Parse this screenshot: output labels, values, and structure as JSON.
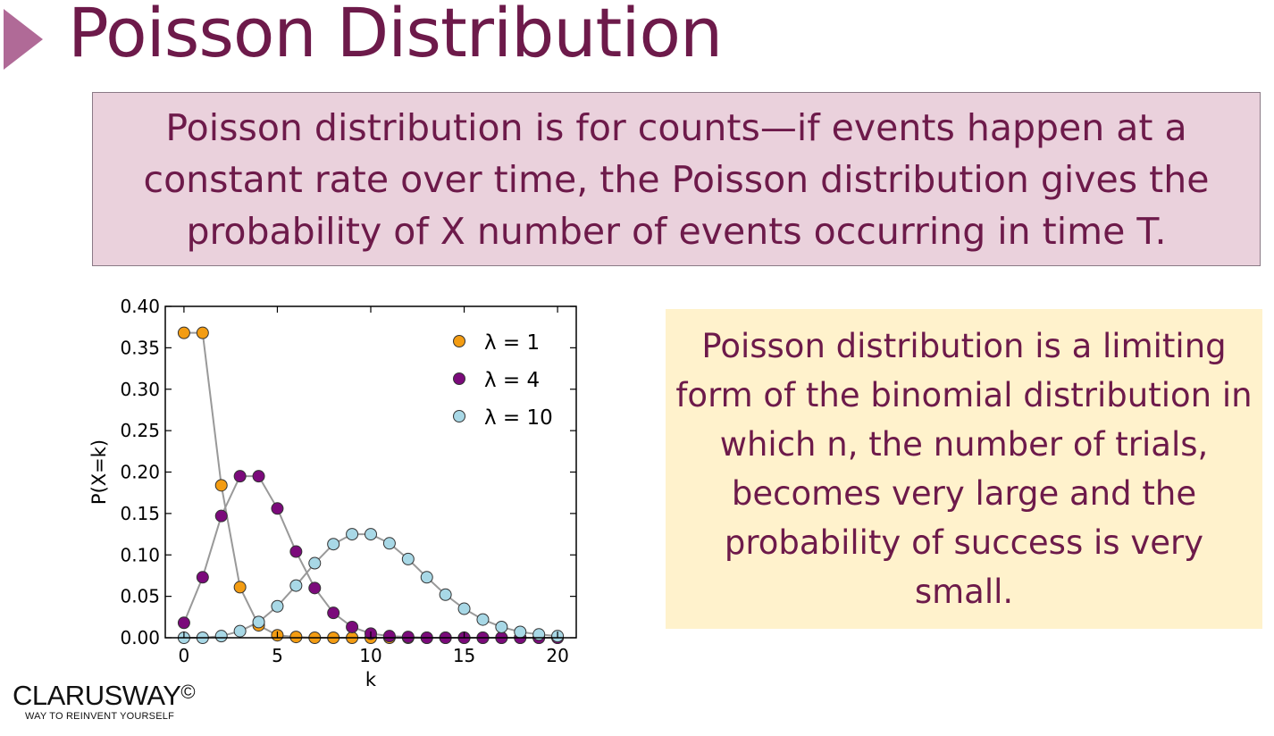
{
  "slide": {
    "title": "Poisson Distribution",
    "definition": "Poisson distribution is for counts—if events happen at a constant rate over time, the Poisson distribution gives the probability of X number of events occurring in time T.",
    "note": "Poisson distribution is a limiting form of the binomial distribution in which n, the number of trials, becomes very large and the probability of success is very small."
  },
  "logo": {
    "name": "CLARUSWAY",
    "symbol": "©",
    "tagline": "WAY TO REINVENT YOURSELF"
  },
  "colors": {
    "title": "#6d1a4a",
    "definition_bg": "#ead1dc",
    "note_bg": "#fff2cc",
    "arrow": "#b06a97"
  },
  "chart_data": {
    "type": "line",
    "title": "",
    "xlabel": "k",
    "ylabel": "P(X=k)",
    "xlim": [
      -1,
      21
    ],
    "ylim": [
      0,
      0.4
    ],
    "x_ticks": [
      0,
      5,
      10,
      15,
      20
    ],
    "y_ticks": [
      "0.00",
      "0.05",
      "0.10",
      "0.15",
      "0.20",
      "0.25",
      "0.30",
      "0.35",
      "0.40"
    ],
    "legend_position": "top-right",
    "grid": false,
    "x": [
      0,
      1,
      2,
      3,
      4,
      5,
      6,
      7,
      8,
      9,
      10,
      11,
      12,
      13,
      14,
      15,
      16,
      17,
      18,
      19,
      20
    ],
    "series": [
      {
        "name": "λ = 1",
        "color": "#f39c12",
        "values": [
          0.368,
          0.368,
          0.184,
          0.061,
          0.015,
          0.003,
          0.001,
          0.0,
          0.0,
          0.0,
          0.0,
          0.0,
          0.0,
          0.0,
          0.0,
          0.0,
          0.0,
          0.0,
          0.0,
          0.0,
          0.0
        ]
      },
      {
        "name": "λ = 4",
        "color": "#7b0a7b",
        "values": [
          0.018,
          0.073,
          0.147,
          0.195,
          0.195,
          0.156,
          0.104,
          0.06,
          0.03,
          0.013,
          0.005,
          0.002,
          0.001,
          0.0,
          0.0,
          0.0,
          0.0,
          0.0,
          0.0,
          0.0,
          0.0
        ]
      },
      {
        "name": "λ = 10",
        "color": "#a8d8e6",
        "values": [
          0.0,
          0.0,
          0.002,
          0.008,
          0.019,
          0.038,
          0.063,
          0.09,
          0.113,
          0.125,
          0.125,
          0.114,
          0.095,
          0.073,
          0.052,
          0.035,
          0.022,
          0.013,
          0.007,
          0.004,
          0.002
        ]
      }
    ]
  }
}
